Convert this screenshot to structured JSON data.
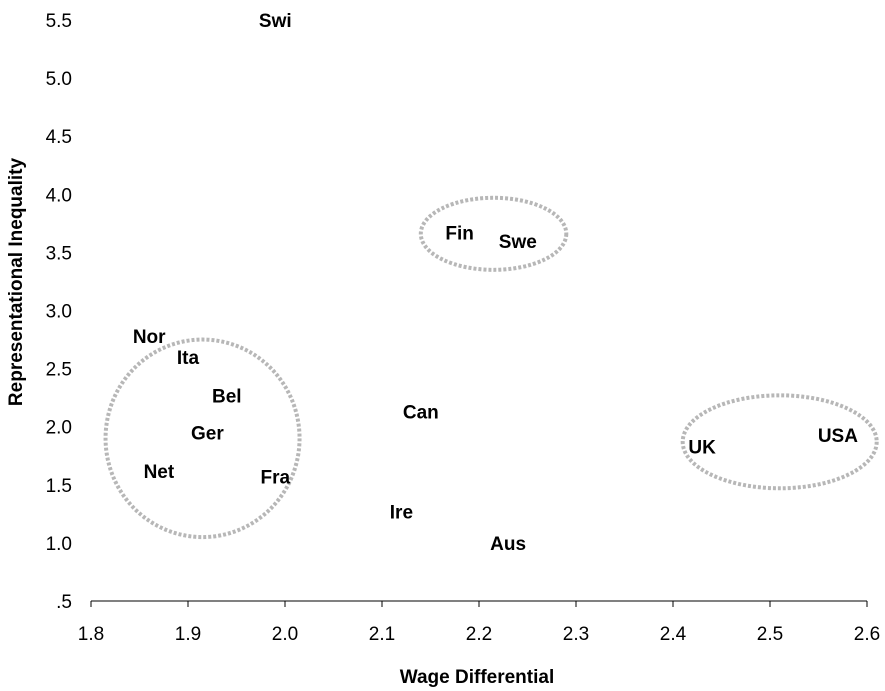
{
  "chart_data": {
    "type": "scatter",
    "title": "",
    "xlabel": "Wage Differential",
    "ylabel": "Representational Inequality",
    "xlim": [
      1.8,
      2.6
    ],
    "ylim": [
      0.5,
      5.5
    ],
    "x_ticks": [
      "1.8",
      "1.9",
      "2.0",
      "2.1",
      "2.2",
      "2.3",
      "2.4",
      "2.5",
      "2.6"
    ],
    "y_ticks": [
      ".5",
      "1.0",
      "1.5",
      "2.0",
      "2.5",
      "3.0",
      "3.5",
      "4.0",
      "4.5",
      "5.0",
      "5.5"
    ],
    "grid": false,
    "points": [
      {
        "label": "Swi",
        "x": 1.99,
        "y": 5.5
      },
      {
        "label": "Fin",
        "x": 2.18,
        "y": 3.67
      },
      {
        "label": "Swe",
        "x": 2.24,
        "y": 3.6
      },
      {
        "label": "Nor",
        "x": 1.86,
        "y": 2.78
      },
      {
        "label": "Ita",
        "x": 1.9,
        "y": 2.6
      },
      {
        "label": "Bel",
        "x": 1.94,
        "y": 2.27
      },
      {
        "label": "Ger",
        "x": 1.92,
        "y": 1.95
      },
      {
        "label": "Net",
        "x": 1.87,
        "y": 1.62
      },
      {
        "label": "Fra",
        "x": 1.99,
        "y": 1.57
      },
      {
        "label": "Can",
        "x": 2.14,
        "y": 2.13
      },
      {
        "label": "Ire",
        "x": 2.12,
        "y": 1.27
      },
      {
        "label": "Aus",
        "x": 2.23,
        "y": 1.0
      },
      {
        "label": "UK",
        "x": 2.43,
        "y": 1.83
      },
      {
        "label": "USA",
        "x": 2.57,
        "y": 1.93
      }
    ],
    "groups": [
      {
        "members": [
          "Fin",
          "Swe"
        ],
        "cx": 2.215,
        "cy": 3.66,
        "rx": 0.075,
        "ry": 0.31
      },
      {
        "members": [
          "Ita",
          "Bel",
          "Ger",
          "Net",
          "Fra"
        ],
        "cx": 1.915,
        "cy": 1.9,
        "rx": 0.1,
        "ry": 0.85
      },
      {
        "members": [
          "UK",
          "USA"
        ],
        "cx": 2.51,
        "cy": 1.87,
        "rx": 0.1,
        "ry": 0.4
      }
    ]
  }
}
